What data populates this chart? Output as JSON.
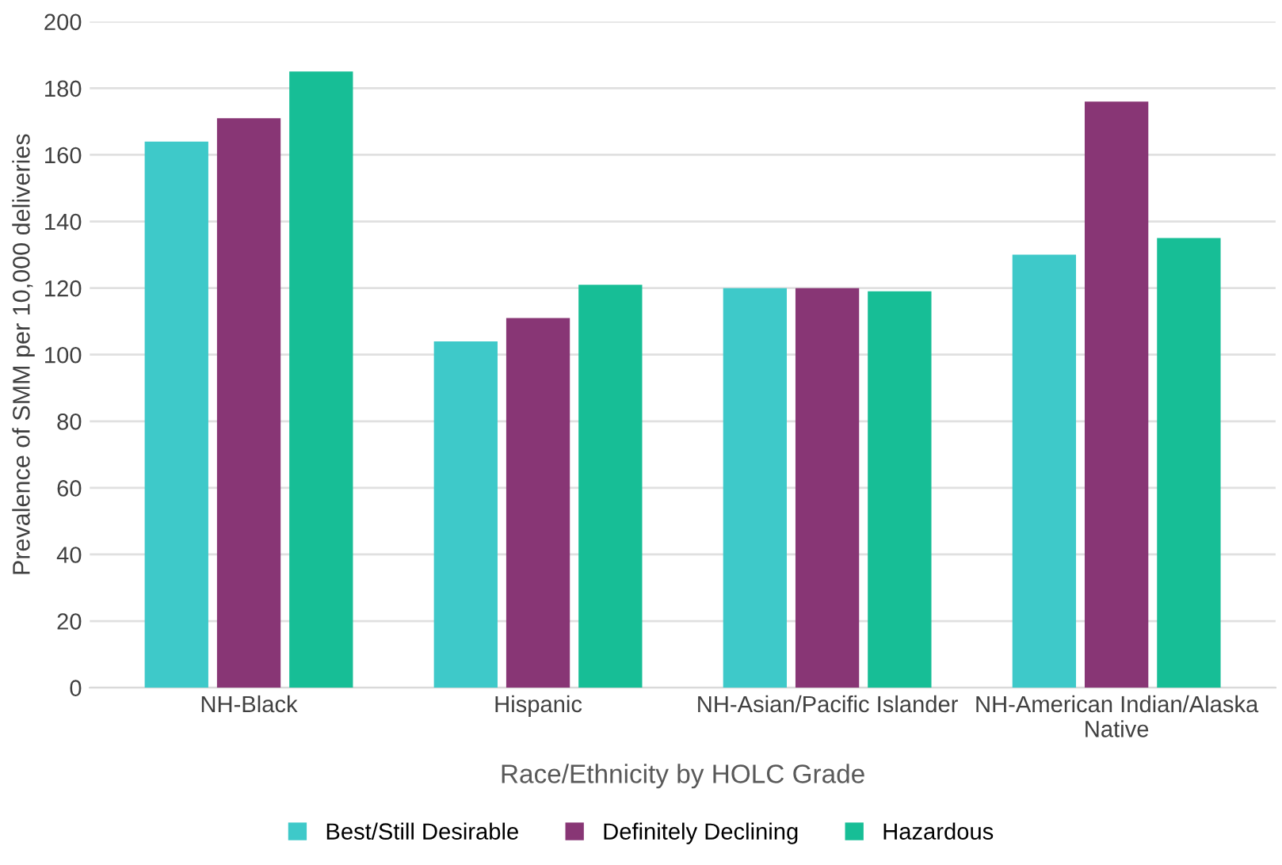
{
  "chart_data": {
    "type": "bar",
    "xlabel": "Race/Ethnicity by HOLC Grade",
    "ylabel": "Prevalence of SMM per 10,000 deliveries",
    "categories": [
      "NH-Black",
      "Hispanic",
      "NH-Asian/Pacific Islander",
      "NH-American Indian/Alaska\nNative"
    ],
    "series": [
      {
        "name": "Best/Still Desirable",
        "color": "#3ec9c9",
        "values": [
          164,
          104,
          120,
          130
        ]
      },
      {
        "name": "Definitely Declining",
        "color": "#883675",
        "values": [
          171,
          111,
          120,
          176
        ]
      },
      {
        "name": "Hazardous",
        "color": "#17be96",
        "values": [
          185,
          121,
          119,
          135
        ]
      }
    ],
    "ylim": [
      0,
      200
    ],
    "yticks": [
      0,
      20,
      40,
      60,
      80,
      100,
      120,
      140,
      160,
      180,
      200
    ],
    "grid": "y",
    "legend": "bottom"
  }
}
